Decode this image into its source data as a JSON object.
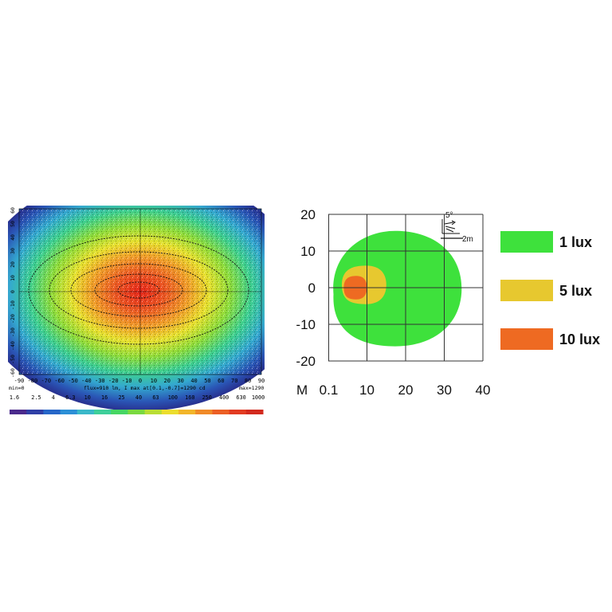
{
  "photometric": {
    "x_ticks": [
      "-90",
      "-80",
      "-70",
      "-60",
      "-50",
      "-40",
      "-30",
      "-20",
      "-10",
      "0",
      "10",
      "20",
      "30",
      "40",
      "50",
      "60",
      "70",
      "80",
      "90"
    ],
    "y_ticks": [
      "60",
      "50",
      "40",
      "30",
      "20",
      "10",
      "0",
      "-10",
      "-20",
      "-30",
      "-40",
      "-50",
      "-60"
    ],
    "min_label": "min=0",
    "info_label": "flux=910 lm, I max at[0.1,-0.7]=1290 cd",
    "max_label": "max=1290",
    "scale_values": [
      "1.6",
      "2.5",
      "4",
      "6.3",
      "10",
      "16",
      "25",
      "40",
      "63",
      "100",
      "160",
      "250",
      "400",
      "630",
      "1000"
    ],
    "scale_colors": [
      "#4b2a8c",
      "#2f3fa6",
      "#2666c8",
      "#2c8fd6",
      "#3ab8c9",
      "#3ecf9a",
      "#46d663",
      "#7ad940",
      "#b9dd35",
      "#ecdd2e",
      "#f2b52a",
      "#f08a28",
      "#ec5f25",
      "#e23b22",
      "#d22a1e"
    ]
  },
  "chart_data": {
    "type": "heatmap",
    "x": [
      0.1,
      10,
      20,
      30,
      40
    ],
    "y": [
      20,
      10,
      0,
      -10,
      -20
    ],
    "xlim": [
      0,
      40
    ],
    "ylim": [
      -20,
      20
    ],
    "x_prefix": "M",
    "x_tick_labels": [
      "0.1",
      "10",
      "20",
      "30",
      "40"
    ],
    "y_tick_labels": [
      "20",
      "10",
      "0",
      "-10",
      "-20"
    ],
    "grid": true,
    "legend_position": "right",
    "mount_angle": "5°",
    "mount_height": "2m",
    "series": [
      {
        "name": "1 lux",
        "color": "#3ee13c",
        "x_range": [
          0.1,
          34.5
        ],
        "y_range": [
          -16,
          15.5
        ]
      },
      {
        "name": "5 lux",
        "color": "#e7c82f",
        "x_range": [
          3.5,
          15
        ],
        "y_range": [
          -4.5,
          6
        ]
      },
      {
        "name": "10 lux",
        "color": "#ee6a22",
        "x_range": [
          4,
          10
        ],
        "y_range": [
          -3.2,
          3.2
        ]
      }
    ]
  }
}
